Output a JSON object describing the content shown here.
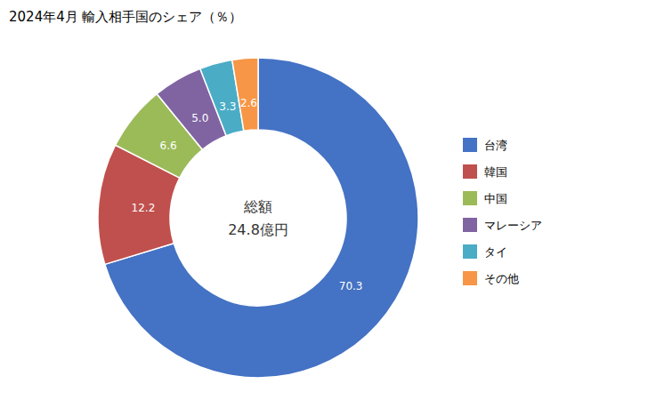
{
  "chart_data": {
    "type": "donut",
    "title": "2024年4月 輸入相手国のシェア（％）",
    "annotations": [
      "総額",
      "24.8億円"
    ],
    "categories": [
      "台湾",
      "韓国",
      "中国",
      "マレーシア",
      "タイ",
      "その他"
    ],
    "values": [
      70.3,
      12.2,
      6.6,
      5.0,
      3.3,
      2.6
    ],
    "value_labels": [
      "70.3",
      "12.2",
      "6.6",
      "5.0",
      "3.3",
      "2.6"
    ],
    "colors": [
      "#4472C4",
      "#C0504D",
      "#9BBB59",
      "#8064A2",
      "#4BACC6",
      "#F79646"
    ],
    "data_labels": true,
    "legend": "right"
  }
}
